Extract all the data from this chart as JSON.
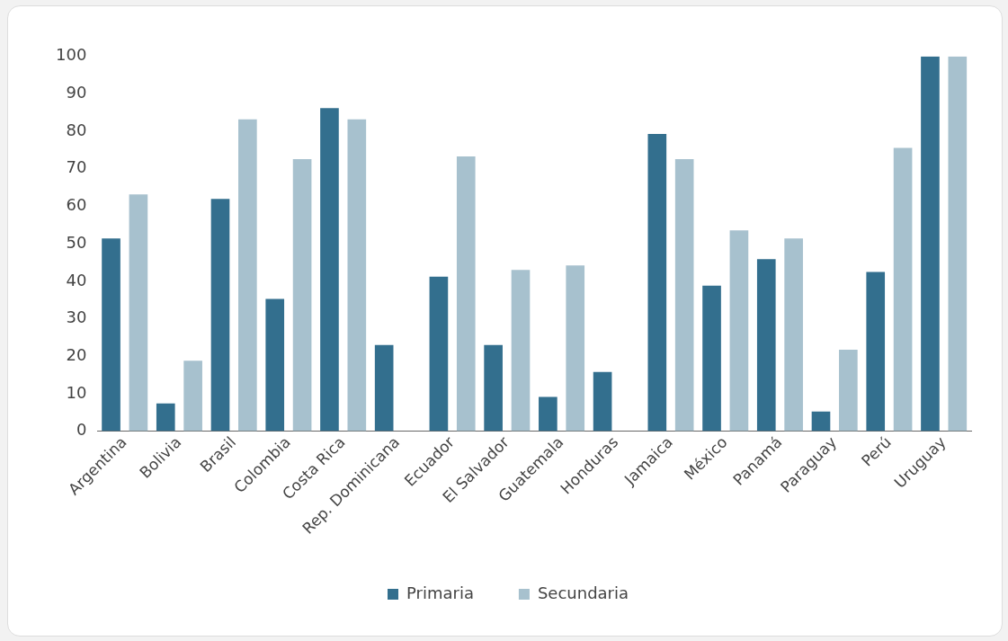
{
  "chart_data": {
    "type": "bar",
    "categories": [
      "Argentina",
      "Bolivia",
      "Brasil",
      "Colombia",
      "Costa Rica",
      "Rep. Dominicana",
      "Ecuador",
      "El Salvador",
      "Guatemala",
      "Honduras",
      "Jamaica",
      "México",
      "Panamá",
      "Paraguay",
      "Perú",
      "Uruguay"
    ],
    "series": [
      {
        "name": "Primaria",
        "color": "#336f8e",
        "values": [
          51.4,
          7.4,
          62,
          35.3,
          86.2,
          23,
          41.2,
          23,
          9.1,
          15.8,
          79.3,
          38.8,
          45.9,
          5.2,
          42.5,
          100
        ]
      },
      {
        "name": "Secundaria",
        "color": "#a7c1ce",
        "values": [
          63.2,
          18.8,
          83.2,
          72.6,
          83.2,
          null,
          73.3,
          43,
          44.2,
          null,
          72.6,
          53.6,
          51.4,
          21.7,
          75.6,
          100
        ]
      }
    ],
    "ylim": [
      0,
      100
    ],
    "yticks": [
      0,
      10,
      20,
      30,
      40,
      50,
      60,
      70,
      80,
      90,
      100
    ],
    "grid": false,
    "legend": "bottom"
  }
}
